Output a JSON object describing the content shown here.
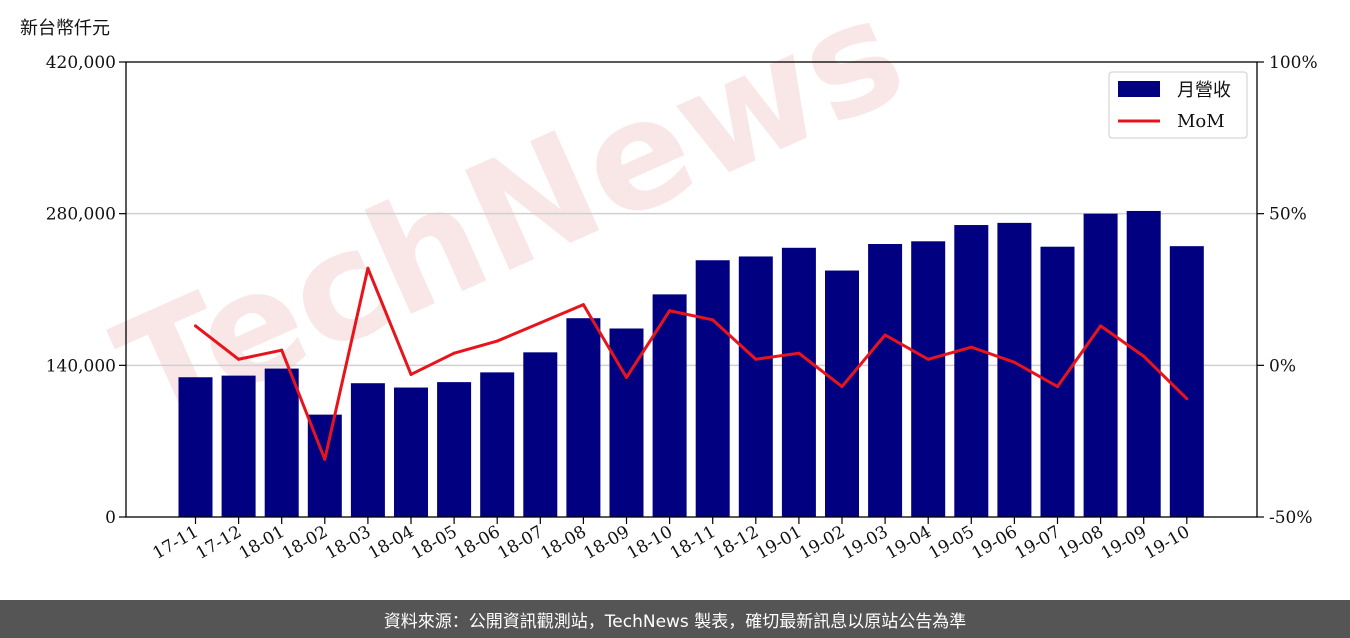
{
  "chart_data": {
    "type": "bar",
    "y_unit_label": "新台幣仟元",
    "categories": [
      "17-11",
      "17-12",
      "18-01",
      "18-02",
      "18-03",
      "18-04",
      "18-05",
      "18-06",
      "18-07",
      "18-08",
      "18-09",
      "18-10",
      "18-11",
      "18-12",
      "19-01",
      "19-02",
      "19-03",
      "19-04",
      "19-05",
      "19-06",
      "19-07",
      "19-08",
      "19-09",
      "19-10"
    ],
    "series": [
      {
        "name": "月營收",
        "type": "bar",
        "axis": "left",
        "color": "#000080",
        "values": [
          129000,
          130500,
          137000,
          94500,
          123500,
          119500,
          124500,
          133500,
          152000,
          183500,
          174000,
          205500,
          237000,
          240500,
          248500,
          227500,
          252000,
          254500,
          269500,
          271500,
          249500,
          280000,
          282500,
          250000
        ]
      },
      {
        "name": "MoM",
        "type": "line",
        "axis": "right",
        "color": "#e8141c",
        "values": [
          13,
          2,
          5,
          -31,
          32,
          -3,
          4,
          8,
          14,
          20,
          -4,
          18,
          15,
          2,
          4,
          -7,
          10,
          2,
          6,
          1,
          -7,
          13,
          3,
          -11
        ]
      }
    ],
    "ylim_left": [
      0,
      420000
    ],
    "yticks_left": [
      "0",
      "140,000",
      "280,000",
      "420,000"
    ],
    "ylim_right": [
      -50,
      100
    ],
    "yticks_right": [
      "-50%",
      "0%",
      "50%",
      "100%"
    ],
    "grid": "horizontal",
    "legend_position": "top-right"
  },
  "watermark": "TechNews",
  "footer_text": "資料來源：公開資訊觀測站，TechNews 製表，確切最新訊息以原站公告為準"
}
